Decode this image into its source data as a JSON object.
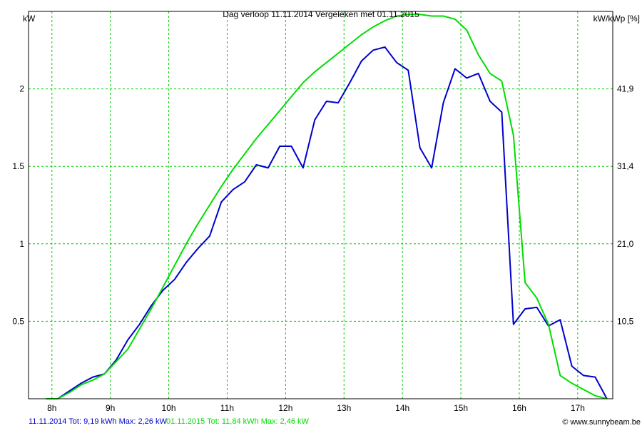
{
  "chart_data": {
    "type": "line",
    "title": "Dag  verloop 11.11.2014   Vergeleken met 01.11.2015",
    "ylabel_left": "kW",
    "ylabel_right": "kW/kWp [%]",
    "x_ticks": [
      "8h",
      "9h",
      "10h",
      "11h",
      "12h",
      "13h",
      "14h",
      "15h",
      "16h",
      "17h"
    ],
    "y_ticks_left": [
      "0.5",
      "1",
      "1.5",
      "2"
    ],
    "y_ticks_right": [
      "10,5",
      "21,0",
      "31,4",
      "41,9"
    ],
    "xlim": [
      7.6,
      17.6
    ],
    "ylim": [
      0,
      2.5
    ],
    "grid": true,
    "series": [
      {
        "name": "11.11.2014",
        "color": "#0000cc",
        "x": [
          7.9,
          8.1,
          8.3,
          8.5,
          8.7,
          8.9,
          9.1,
          9.3,
          9.5,
          9.7,
          9.9,
          10.1,
          10.3,
          10.5,
          10.7,
          10.9,
          11.1,
          11.3,
          11.5,
          11.7,
          11.9,
          12.1,
          12.3,
          12.5,
          12.7,
          12.9,
          13.1,
          13.3,
          13.5,
          13.7,
          13.9,
          14.1,
          14.3,
          14.5,
          14.7,
          14.9,
          15.1,
          15.3,
          15.5,
          15.7,
          15.9,
          16.1,
          16.3,
          16.5,
          16.7,
          16.9,
          17.1,
          17.3,
          17.5
        ],
        "y": [
          0.0,
          0.0,
          0.05,
          0.1,
          0.14,
          0.16,
          0.25,
          0.38,
          0.48,
          0.6,
          0.7,
          0.77,
          0.88,
          0.97,
          1.05,
          1.27,
          1.35,
          1.4,
          1.51,
          1.49,
          1.63,
          1.63,
          1.49,
          1.8,
          1.92,
          1.91,
          2.04,
          2.18,
          2.25,
          2.27,
          2.17,
          2.12,
          1.62,
          1.49,
          1.91,
          2.13,
          2.07,
          2.1,
          1.92,
          1.85,
          0.48,
          0.58,
          0.59,
          0.47,
          0.51,
          0.21,
          0.15,
          0.14,
          0.0
        ]
      },
      {
        "name": "01.11.2015",
        "color": "#00dd00",
        "x": [
          7.9,
          8.1,
          8.3,
          8.5,
          8.7,
          8.9,
          9.1,
          9.3,
          9.5,
          9.7,
          9.9,
          10.1,
          10.3,
          10.5,
          10.7,
          10.9,
          11.1,
          11.3,
          11.5,
          11.7,
          11.9,
          12.1,
          12.3,
          12.5,
          12.7,
          12.9,
          13.1,
          13.3,
          13.5,
          13.7,
          13.9,
          14.1,
          14.3,
          14.5,
          14.7,
          14.9,
          15.1,
          15.3,
          15.5,
          15.7,
          15.9,
          16.1,
          16.3,
          16.5,
          16.7,
          16.9,
          17.1,
          17.3,
          17.5
        ],
        "y": [
          0.0,
          0.0,
          0.04,
          0.09,
          0.12,
          0.16,
          0.24,
          0.32,
          0.45,
          0.58,
          0.72,
          0.86,
          1.0,
          1.13,
          1.25,
          1.37,
          1.48,
          1.58,
          1.68,
          1.77,
          1.86,
          1.95,
          2.04,
          2.11,
          2.17,
          2.23,
          2.29,
          2.35,
          2.4,
          2.44,
          2.47,
          2.48,
          2.48,
          2.47,
          2.47,
          2.45,
          2.38,
          2.22,
          2.1,
          2.05,
          1.7,
          0.75,
          0.65,
          0.48,
          0.15,
          0.1,
          0.06,
          0.02,
          0.0
        ]
      }
    ],
    "footer_series1": "11.11.2014 Tot: 9,19 kWh Max: 2,26 kW",
    "footer_series2": "01.11.2015 Tot: 11,84 kWh Max: 2,46 kW",
    "footer_credit": "© www.sunnybeam.be"
  }
}
